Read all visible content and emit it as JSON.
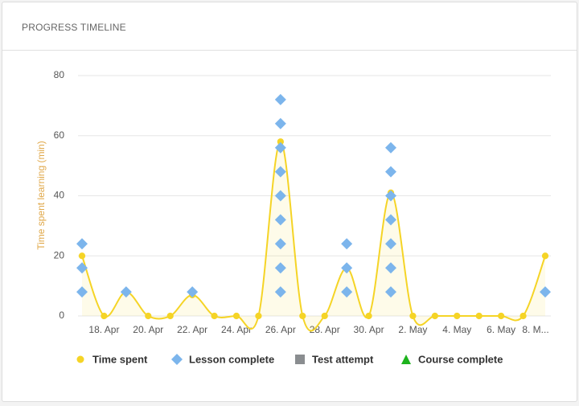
{
  "header": {
    "title": "PROGRESS TIMELINE"
  },
  "chart_data": {
    "type": "line",
    "y_label": "Time spent learning (min)",
    "categories": [
      null,
      "18. Apr",
      null,
      "20. Apr",
      null,
      "22. Apr",
      null,
      "24. Apr",
      null,
      "26. Apr",
      null,
      "28. Apr",
      null,
      "30. Apr",
      null,
      "2. May",
      null,
      "4. May",
      null,
      "6. May",
      null,
      "8. M..."
    ],
    "ylim": [
      0,
      80
    ],
    "yticks": [
      0,
      20,
      40,
      60,
      80
    ],
    "grid": true,
    "series": [
      {
        "name": "Time spent",
        "color": "#f5d426",
        "marker": "circle",
        "smooth": true,
        "values": [
          20,
          0,
          8,
          0,
          0,
          7,
          0,
          0,
          0,
          58,
          0,
          0,
          16,
          0,
          41,
          0,
          0,
          0,
          0,
          0,
          0,
          20
        ]
      },
      {
        "name": "Lesson complete",
        "color": "#7cb5ec",
        "marker": "diamond",
        "values": [
          [
            8,
            16,
            24
          ],
          [],
          [
            8
          ],
          [],
          [],
          [
            8
          ],
          [],
          [],
          [],
          [
            8,
            16,
            24,
            32,
            40,
            48,
            56,
            64,
            72
          ],
          [],
          [],
          [
            8,
            16,
            24
          ],
          [],
          [
            8,
            16,
            24,
            32,
            40,
            48,
            56
          ],
          [],
          [],
          [],
          [],
          [],
          [],
          [
            8
          ]
        ]
      },
      {
        "name": "Test attempt",
        "color": "#8a8d90",
        "marker": "square"
      },
      {
        "name": "Course complete",
        "color": "#1db31d",
        "marker": "triangle"
      }
    ]
  }
}
